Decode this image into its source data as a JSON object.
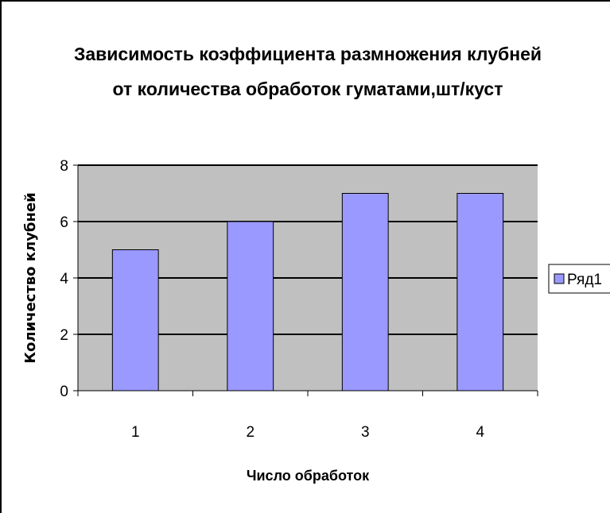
{
  "chart_data": {
    "type": "bar",
    "title": "Зависимость коэффициента размножения клубней",
    "subtitle": "от количества обработок гуматами,шт/куст",
    "xlabel": "Число обработок",
    "ylabel": "Количество клубней",
    "categories": [
      "1",
      "2",
      "3",
      "4"
    ],
    "y_ticks": [
      "0",
      "2",
      "4",
      "6",
      "8"
    ],
    "ylim": [
      0,
      8
    ],
    "grid": true,
    "plot_background": "#c0c0c0",
    "legend_position": "right",
    "series": [
      {
        "name": "Ряд1",
        "values": [
          5,
          6,
          7,
          7
        ],
        "color": "#9999ff"
      }
    ]
  }
}
